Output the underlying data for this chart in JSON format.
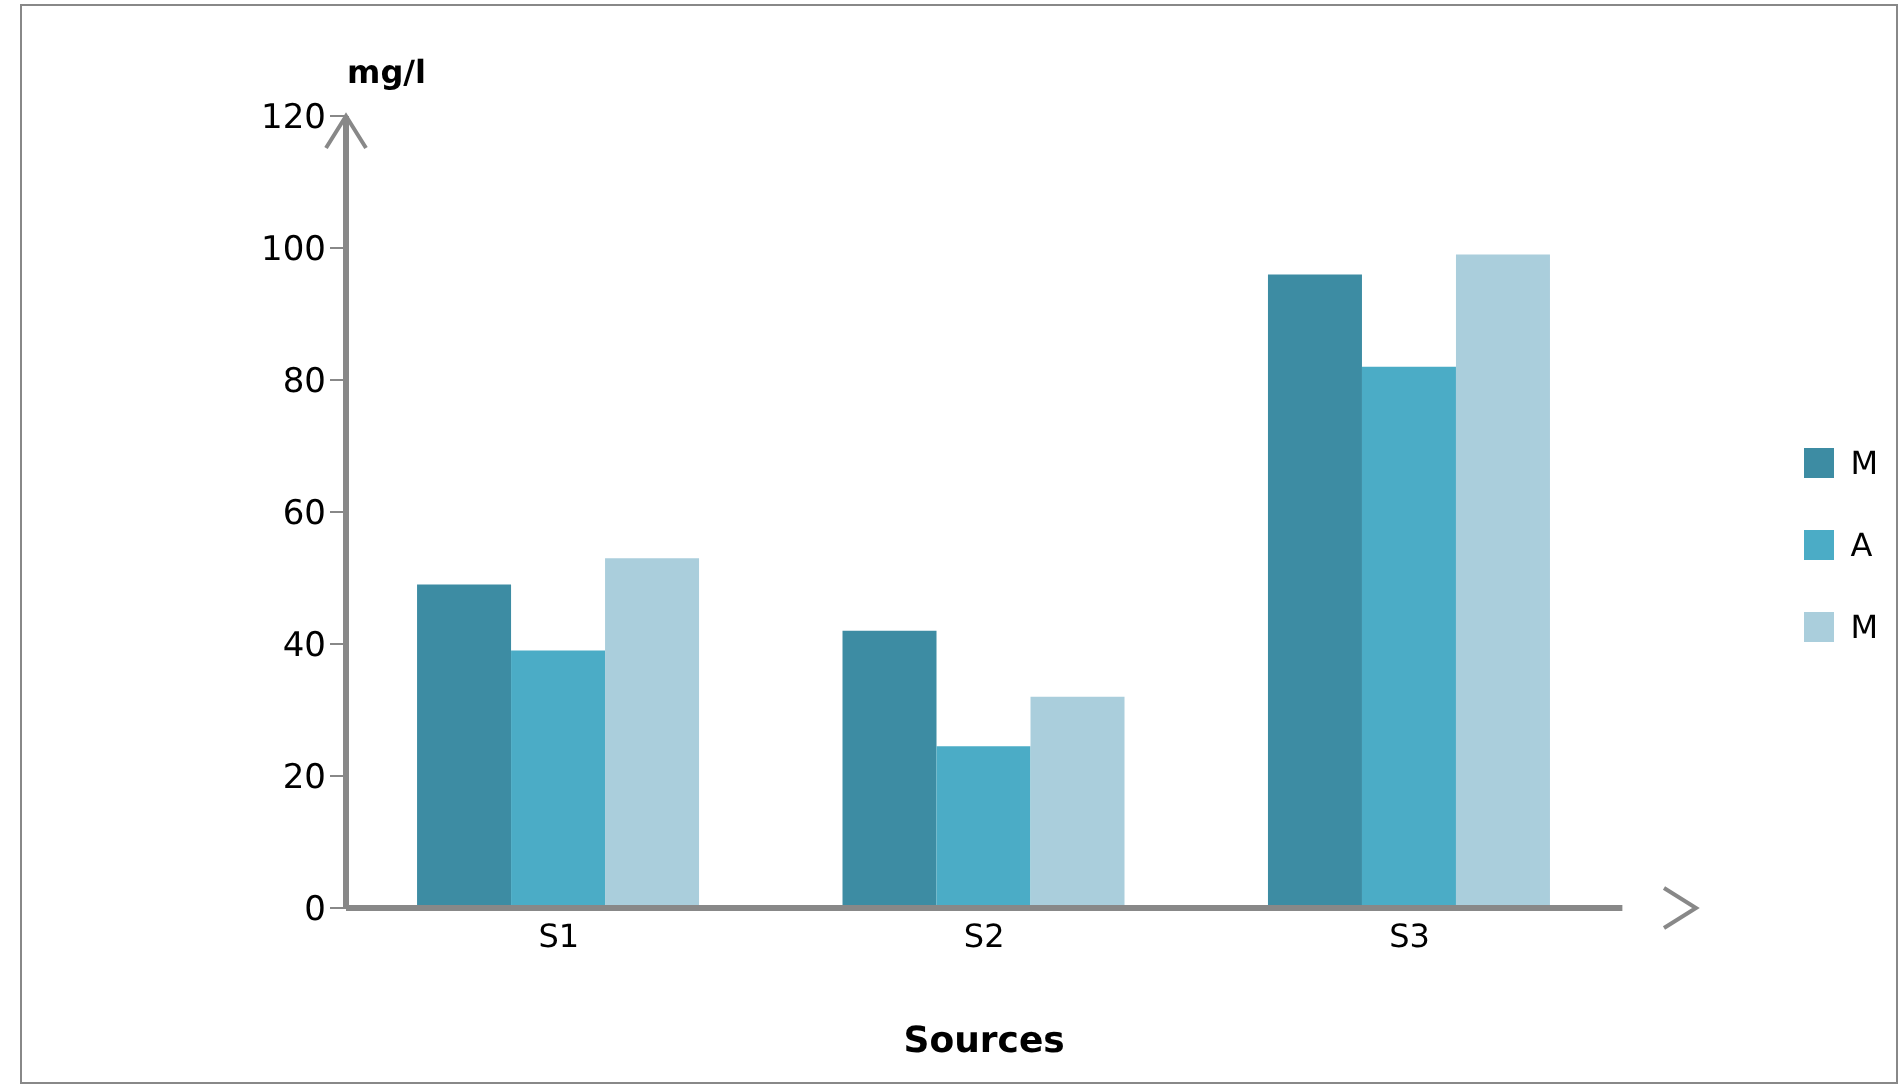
{
  "chart_data": {
    "type": "bar",
    "xlabel": "Sources",
    "ylabel": "mg/l",
    "categories": [
      "S1",
      "S2",
      "S3"
    ],
    "series": [
      {
        "name": "M",
        "color": "#3d8ca3",
        "values": [
          49,
          42,
          96
        ]
      },
      {
        "name": "A",
        "color": "#4bacc6",
        "values": [
          39,
          24.5,
          82
        ]
      },
      {
        "name": "M",
        "color": "#aacedc",
        "values": [
          53,
          32,
          99
        ]
      }
    ],
    "ylim": [
      0,
      120
    ],
    "yticks": [
      0,
      20,
      40,
      60,
      80,
      100,
      120
    ],
    "grid": false,
    "legend": "right"
  }
}
